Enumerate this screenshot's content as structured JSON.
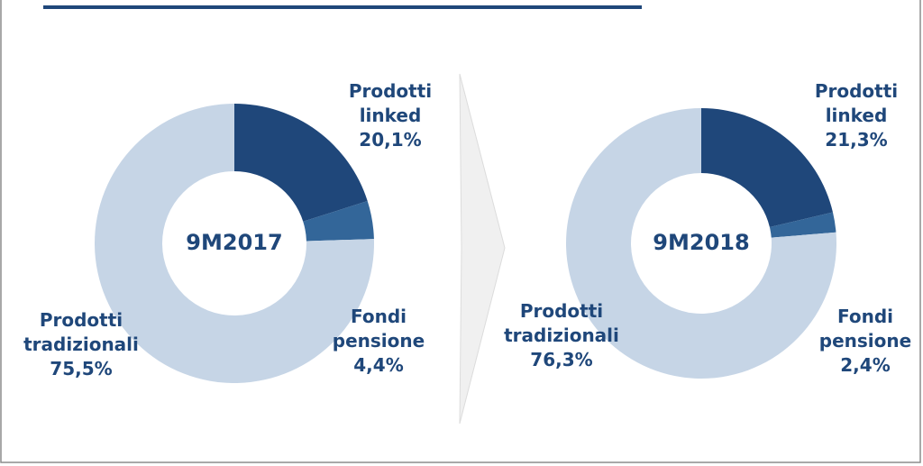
{
  "chart_data": [
    {
      "type": "donut",
      "title": "9M2017",
      "categories": [
        "Prodotti linked",
        "Fondi pensione",
        "Prodotti tradizionali"
      ],
      "values": [
        20.1,
        4.4,
        75.5
      ],
      "value_labels": [
        "20,1%",
        "4,4%",
        "75,5%"
      ],
      "colors": [
        "#1f477a",
        "#336699",
        "#c6d5e6"
      ]
    },
    {
      "type": "donut",
      "title": "9M2018",
      "categories": [
        "Prodotti linked",
        "Fondi pensione",
        "Prodotti tradizionali"
      ],
      "values": [
        21.3,
        2.4,
        76.3
      ],
      "value_labels": [
        "21,3%",
        "2,4%",
        "76,3%"
      ],
      "colors": [
        "#1f477a",
        "#336699",
        "#c6d5e6"
      ]
    }
  ]
}
